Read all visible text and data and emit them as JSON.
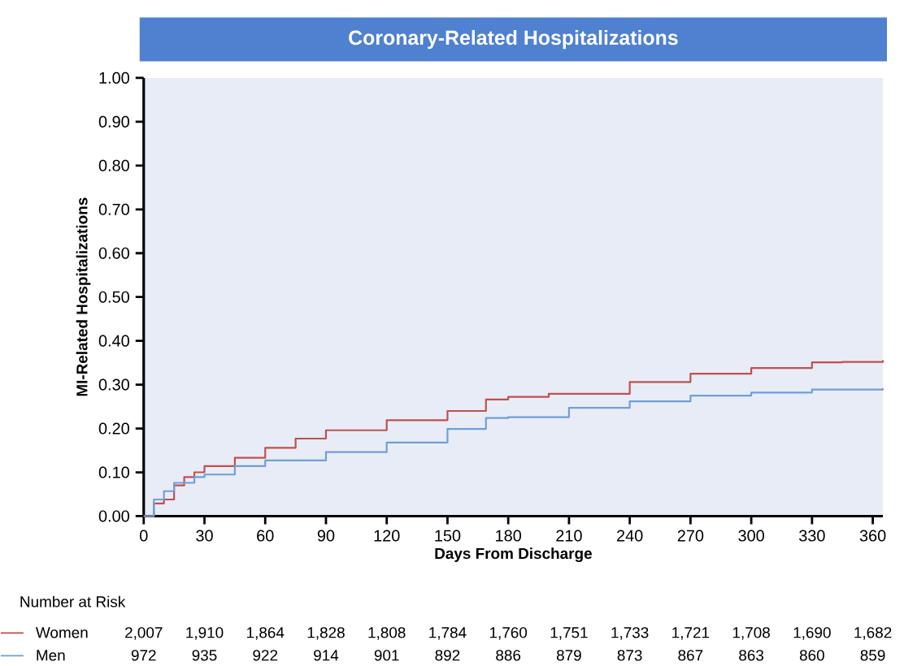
{
  "chart_data": {
    "type": "step",
    "title": "Coronary-Related Hospitalizations",
    "xlabel": "Days From Discharge",
    "ylabel": "MI-Related Hospitalizations",
    "series": [
      {
        "name": "Women",
        "color": "#c0504d",
        "x": [
          0,
          5,
          10,
          15,
          20,
          25,
          30,
          45,
          60,
          75,
          90,
          120,
          150,
          169,
          180,
          200,
          240,
          270,
          300,
          330,
          345,
          365
        ],
        "values": [
          0,
          0.029,
          0.038,
          0.07,
          0.089,
          0.1,
          0.114,
          0.133,
          0.156,
          0.177,
          0.196,
          0.219,
          0.24,
          0.266,
          0.272,
          0.279,
          0.306,
          0.325,
          0.338,
          0.351,
          0.352,
          0.356
        ]
      },
      {
        "name": "Men",
        "color": "#6f9fd8",
        "x": [
          0,
          5,
          10,
          15,
          25,
          30,
          45,
          60,
          90,
          120,
          150,
          169,
          180,
          210,
          240,
          270,
          300,
          330,
          365
        ],
        "values": [
          0,
          0.038,
          0.057,
          0.076,
          0.089,
          0.095,
          0.114,
          0.127,
          0.146,
          0.168,
          0.199,
          0.224,
          0.226,
          0.247,
          0.262,
          0.275,
          0.282,
          0.289,
          0.292
        ]
      }
    ],
    "xlim": [
      0,
      365
    ],
    "xticks": [
      0,
      30,
      60,
      90,
      120,
      150,
      180,
      210,
      240,
      270,
      300,
      330,
      360
    ],
    "ylim": [
      0,
      1
    ],
    "yticks": [
      {
        "value": 0,
        "label": "0.00"
      },
      {
        "value": 0.1,
        "label": "0.10"
      },
      {
        "value": 0.2,
        "label": "0.20"
      },
      {
        "value": 0.3,
        "label": "0.30"
      },
      {
        "value": 0.4,
        "label": "0.40"
      },
      {
        "value": 0.5,
        "label": "0.50"
      },
      {
        "value": 0.6,
        "label": "0.60"
      },
      {
        "value": 0.7,
        "label": "0.70"
      },
      {
        "value": 0.8,
        "label": "0.80"
      },
      {
        "value": 0.9,
        "label": "0.90"
      },
      {
        "value": 1,
        "label": "1.00"
      }
    ],
    "grid": false,
    "legend": "bottom left",
    "line_style": "solid",
    "marker": "none",
    "annotations": [
      "Number at Risk",
      "2,007",
      "1,910",
      "1,864",
      "1,828",
      "1,808",
      "1,784",
      "1,760",
      "1,751",
      "1,733",
      "1,721",
      "1,708",
      "1,690",
      "1,682",
      "972",
      "935",
      "922",
      "914",
      "901",
      "892",
      "886",
      "879",
      "873",
      "867",
      "863",
      "860",
      "859"
    ]
  }
}
